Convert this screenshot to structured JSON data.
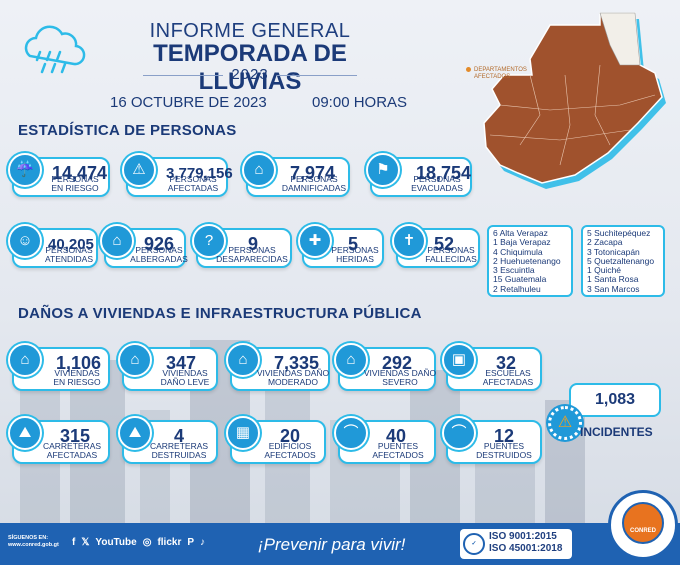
{
  "header": {
    "title_line1": "INFORME GENERAL",
    "title_line2": "TEMPORADA DE LLUVIAS",
    "year": "2023",
    "date": "16 OCTUBRE DE 2023",
    "hour": "09:00 HORAS"
  },
  "map": {
    "legend": [
      "DEPARTAMENTOS",
      "AFECTADOS"
    ],
    "color": "#a0522d"
  },
  "sections": {
    "people": "ESTADÍSTICA DE PERSONAS",
    "housing": "DAÑOS A VIVIENDAS E INFRAESTRUCTURA PÚBLICA"
  },
  "people": [
    {
      "value": "14,474",
      "label": [
        "PERSONAS",
        "EN RIESGO"
      ]
    },
    {
      "value": "3,779,156",
      "label": [
        "PERSONAS",
        "AFECTADAS"
      ]
    },
    {
      "value": "7,974",
      "label": [
        "PERSONAS",
        "DAMNIFICADAS"
      ]
    },
    {
      "value": "18,754",
      "label": [
        "PERSONAS",
        "EVACUADAS"
      ]
    },
    {
      "value": "40,205",
      "label": [
        "PERSONAS",
        "ATENDIDAS"
      ]
    },
    {
      "value": "926",
      "label": [
        "PERSONAS",
        "ALBERGADAS"
      ]
    },
    {
      "value": "9",
      "label": [
        "PERSONAS",
        "DESAPARECIDAS"
      ]
    },
    {
      "value": "5",
      "label": [
        "PERSONAS",
        "HERIDAS"
      ]
    },
    {
      "value": "52",
      "label": [
        "PERSONAS",
        "FALLECIDAS"
      ]
    }
  ],
  "departments": {
    "col1": [
      "6 Alta Verapaz",
      "1 Baja Verapaz",
      "4 Chiquimula",
      "2 Huehuetenango",
      "3 Escuintla",
      "15 Guatemala",
      "2 Retalhuleu"
    ],
    "col2": [
      "5 Suchitepéquez",
      "2 Zacapa",
      "3 Totonicapán",
      "5 Quetzaltenango",
      "1 Quiché",
      "1 Santa Rosa",
      "3 San Marcos"
    ]
  },
  "housing": [
    {
      "value": "1,106",
      "label": [
        "VIVIENDAS",
        "EN RIESGO"
      ]
    },
    {
      "value": "347",
      "label": [
        "VIVIENDAS",
        "DAÑO LEVE"
      ]
    },
    {
      "value": "7,335",
      "label": [
        "VIVIENDAS DAÑO",
        "MODERADO"
      ]
    },
    {
      "value": "292",
      "label": [
        "VIVIENDAS DAÑO",
        "SEVERO"
      ]
    },
    {
      "value": "32",
      "label": [
        "ESCUELAS",
        "AFECTADAS"
      ]
    },
    {
      "value": "315",
      "label": [
        "CARRETERAS",
        "AFECTADAS"
      ]
    },
    {
      "value": "4",
      "label": [
        "CARRETERAS",
        "DESTRUIDAS"
      ]
    },
    {
      "value": "20",
      "label": [
        "EDIFICIOS",
        "AFECTADOS"
      ]
    },
    {
      "value": "40",
      "label": [
        "PUENTES",
        "AFECTADOS"
      ]
    },
    {
      "value": "12",
      "label": [
        "PUENTES",
        "DESTRUIDOS"
      ]
    }
  ],
  "incidents": {
    "value": "1,083",
    "label": "INCIDENTES"
  },
  "footer": {
    "follow": [
      "SÍGUENOS EN:",
      "www.conred.gob.gt"
    ],
    "social": [
      "f",
      "𝕏",
      "YouTube",
      "◎",
      "flickr",
      "P",
      "♪"
    ],
    "slogan": "¡Prevenir para vivir!",
    "iso": [
      "ISO  9001:2015",
      "ISO 45001:2018"
    ],
    "brand": "CONRED"
  },
  "colors": {
    "primary": "#1b3a78",
    "accent": "#2dbbe8",
    "footer": "#1f62b2",
    "map": "#a0522d"
  }
}
